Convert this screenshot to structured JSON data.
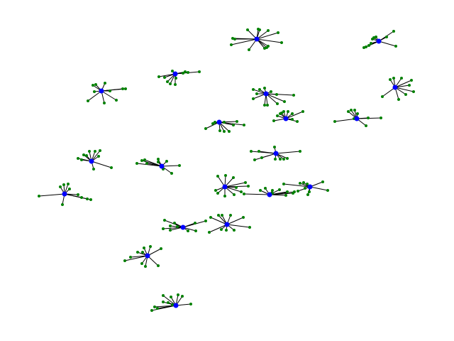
{
  "graph": {
    "edge_color": "#000000",
    "hub_color": "#0000ff",
    "leaf_color": "#008000",
    "clusters": [
      {
        "hub": [
          362,
          55
        ],
        "leaves": [
          [
            328,
            54
          ],
          [
            331,
            55
          ],
          [
            326,
            63
          ],
          [
            349,
            42
          ],
          [
            364,
            41
          ],
          [
            366,
            42
          ],
          [
            378,
            43
          ],
          [
            392,
            46
          ],
          [
            397,
            60
          ],
          [
            378,
            65
          ],
          [
            376,
            67
          ],
          [
            373,
            68
          ],
          [
            351,
            70
          ]
        ]
      },
      {
        "hub": [
          534,
          58
        ],
        "leaves": [
          [
            555,
            44
          ],
          [
            545,
            52
          ],
          [
            530,
            52
          ],
          [
            527,
            53
          ],
          [
            525,
            55
          ],
          [
            513,
            67
          ],
          [
            516,
            66
          ],
          [
            520,
            64
          ],
          [
            558,
            65
          ],
          [
            523,
            61
          ]
        ]
      },
      {
        "hub": [
          247,
          104
        ],
        "leaves": [
          [
            224,
            108
          ],
          [
            232,
            109
          ],
          [
            236,
            115
          ],
          [
            240,
            118
          ],
          [
            247,
            119
          ],
          [
            248,
            110
          ],
          [
            258,
            103
          ],
          [
            265,
            102
          ],
          [
            261,
            101
          ],
          [
            281,
            101
          ],
          [
            243,
            100
          ]
        ]
      },
      {
        "hub": [
          143,
          128
        ],
        "leaves": [
          [
            135,
            119
          ],
          [
            131,
            120
          ],
          [
            133,
            129
          ],
          [
            148,
            117
          ],
          [
            155,
            128
          ],
          [
            173,
            125
          ],
          [
            177,
            125
          ],
          [
            164,
            141
          ],
          [
            147,
            145
          ],
          [
            124,
            142
          ]
        ]
      },
      {
        "hub": [
          375,
          132
        ],
        "leaves": [
          [
            357,
            126
          ],
          [
            366,
            126
          ],
          [
            373,
            124
          ],
          [
            382,
            129
          ],
          [
            390,
            133
          ],
          [
            414,
            134
          ],
          [
            401,
            143
          ],
          [
            391,
            146
          ],
          [
            377,
            148
          ],
          [
            373,
            148
          ],
          [
            357,
            139
          ],
          [
            362,
            132
          ]
        ]
      },
      {
        "hub": [
          557,
          123
        ],
        "leaves": [
          [
            566,
            110
          ],
          [
            580,
            113
          ],
          [
            577,
            120
          ],
          [
            583,
            129
          ],
          [
            572,
            133
          ],
          [
            555,
            110
          ],
          [
            550,
            112
          ],
          [
            539,
            136
          ],
          [
            562,
            140
          ]
        ]
      },
      {
        "hub": [
          309,
          172
        ],
        "leaves": [
          [
            290,
            181
          ],
          [
            300,
            174
          ],
          [
            303,
            172
          ],
          [
            316,
            172
          ],
          [
            334,
            171
          ],
          [
            344,
            176
          ],
          [
            323,
            185
          ],
          [
            316,
            185
          ],
          [
            310,
            184
          ],
          [
            329,
            176
          ]
        ]
      },
      {
        "hub": [
          403,
          167
        ],
        "leaves": [
          [
            386,
            170
          ],
          [
            391,
            163
          ],
          [
            395,
            160
          ],
          [
            400,
            157
          ],
          [
            406,
            157
          ],
          [
            412,
            160
          ],
          [
            427,
            157
          ],
          [
            419,
            171
          ],
          [
            412,
            168
          ],
          [
            397,
            159
          ]
        ]
      },
      {
        "hub": [
          503,
          167
        ],
        "leaves": [
          [
            472,
            171
          ],
          [
            491,
            157
          ],
          [
            495,
            155
          ],
          [
            500,
            155
          ],
          [
            504,
            160
          ],
          [
            519,
            166
          ],
          [
            537,
            166
          ],
          [
            516,
            177
          ],
          [
            499,
            167
          ]
        ]
      },
      {
        "hub": [
          389,
          216
        ],
        "leaves": [
          [
            354,
            213
          ],
          [
            365,
            213
          ],
          [
            387,
            207
          ],
          [
            423,
            213
          ],
          [
            405,
            223
          ],
          [
            400,
            224
          ],
          [
            395,
            224
          ],
          [
            388,
            224
          ],
          [
            359,
            225
          ],
          [
            369,
            222
          ]
        ]
      },
      {
        "hub": [
          129,
          227
        ],
        "leaves": [
          [
            110,
            223
          ],
          [
            118,
            218
          ],
          [
            122,
            219
          ],
          [
            126,
            213
          ],
          [
            134,
            213
          ],
          [
            141,
            212
          ],
          [
            139,
            220
          ],
          [
            157,
            236
          ],
          [
            132,
            238
          ],
          [
            115,
            225
          ]
        ]
      },
      {
        "hub": [
          228,
          234
        ],
        "leaves": [
          [
            193,
            230
          ],
          [
            200,
            226
          ],
          [
            204,
            225
          ],
          [
            223,
            228
          ],
          [
            223,
            224
          ],
          [
            235,
            227
          ],
          [
            253,
            233
          ],
          [
            242,
            244
          ],
          [
            230,
            238
          ],
          [
            207,
            230
          ]
        ]
      },
      {
        "hub": [
          317,
          263
        ],
        "leaves": [
          [
            307,
            248
          ],
          [
            318,
            247
          ],
          [
            329,
            250
          ],
          [
            346,
            257
          ],
          [
            350,
            262
          ],
          [
            340,
            270
          ],
          [
            330,
            274
          ],
          [
            317,
            276
          ],
          [
            307,
            272
          ],
          [
            304,
            268
          ],
          [
            333,
            264
          ]
        ]
      },
      {
        "hub": [
          380,
          274
        ],
        "leaves": [
          [
            344,
            273
          ],
          [
            367,
            268
          ],
          [
            374,
            265
          ],
          [
            384,
            268
          ],
          [
            394,
            267
          ],
          [
            405,
            270
          ],
          [
            415,
            270
          ],
          [
            413,
            272
          ],
          [
            403,
            275
          ],
          [
            384,
            272
          ]
        ]
      },
      {
        "hub": [
          437,
          263
        ],
        "leaves": [
          [
            400,
            259
          ],
          [
            423,
            258
          ],
          [
            428,
            257
          ],
          [
            433,
            259
          ],
          [
            455,
            256
          ],
          [
            462,
            268
          ],
          [
            434,
            274
          ],
          [
            436,
            270
          ],
          [
            430,
            265
          ],
          [
            420,
            269
          ]
        ]
      },
      {
        "hub": [
          91,
          273
        ],
        "leaves": [
          [
            55,
            276
          ],
          [
            85,
            263
          ],
          [
            90,
            260
          ],
          [
            96,
            259
          ],
          [
            98,
            266
          ],
          [
            110,
            274
          ],
          [
            123,
            280
          ],
          [
            128,
            281
          ],
          [
            115,
            278
          ],
          [
            88,
            288
          ]
        ]
      },
      {
        "hub": [
          258,
          320
        ],
        "leaves": [
          [
            230,
            322
          ],
          [
            232,
            310
          ],
          [
            240,
            318
          ],
          [
            246,
            314
          ],
          [
            250,
            319
          ],
          [
            275,
            314
          ],
          [
            290,
            311
          ],
          [
            276,
            325
          ],
          [
            265,
            325
          ],
          [
            240,
            324
          ]
        ]
      },
      {
        "hub": [
          320,
          316
        ],
        "leaves": [
          [
            297,
            306
          ],
          [
            308,
            303
          ],
          [
            313,
            303
          ],
          [
            325,
            303
          ],
          [
            343,
            306
          ],
          [
            352,
            320
          ],
          [
            330,
            324
          ],
          [
            319,
            324
          ],
          [
            312,
            323
          ],
          [
            295,
            327
          ]
        ]
      },
      {
        "hub": [
          208,
          360
        ],
        "leaves": [
          [
            176,
            367
          ],
          [
            184,
            362
          ],
          [
            194,
            355
          ],
          [
            201,
            355
          ],
          [
            203,
            349
          ],
          [
            212,
            347
          ],
          [
            227,
            350
          ],
          [
            223,
            374
          ],
          [
            205,
            375
          ],
          [
            200,
            371
          ]
        ]
      },
      {
        "hub": [
          248,
          430
        ],
        "leaves": [
          [
            214,
            437
          ],
          [
            218,
            432
          ],
          [
            222,
            434
          ],
          [
            230,
            425
          ],
          [
            237,
            426
          ],
          [
            230,
            416
          ],
          [
            241,
            418
          ],
          [
            251,
            415
          ],
          [
            257,
            417
          ],
          [
            269,
            428
          ],
          [
            243,
            429
          ]
        ]
      }
    ]
  }
}
